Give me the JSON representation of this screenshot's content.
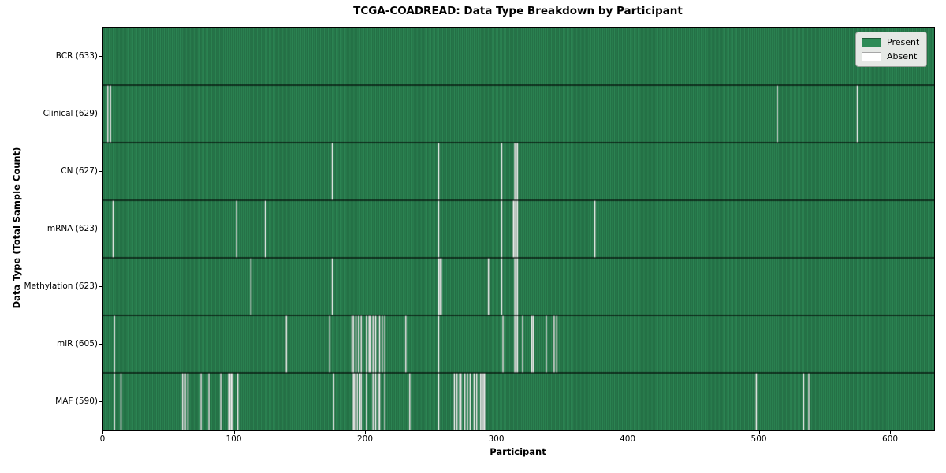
{
  "figure": {
    "title": "TCGA-COADREAD: Data Type Breakdown by Participant",
    "xlabel": "Participant",
    "ylabel": "Data Type (Total Sample Count)"
  },
  "chart_data": {
    "type": "heatmap",
    "title": "TCGA-COADREAD: Data Type Breakdown by Participant",
    "xlabel": "Participant",
    "ylabel": "Data Type (Total Sample Count)",
    "xlim": [
      0,
      633
    ],
    "n_participants": 633,
    "x_ticks": [
      0,
      100,
      200,
      300,
      400,
      500,
      600
    ],
    "grid": false,
    "legend_position": "upper right",
    "legend": [
      {
        "label": "Present",
        "color": "#2e8b57"
      },
      {
        "label": "Absent",
        "color": "#ffffff"
      }
    ],
    "colors": {
      "present": "#2e8b57",
      "absent": "#ffffff",
      "bar_edge": "rgba(0,0,0,0.5)",
      "row_divider": "rgba(0,0,0,0.85)"
    },
    "rows": [
      {
        "label": "BCR (633)",
        "data_type": "BCR",
        "total_samples": 633,
        "absent_participants": []
      },
      {
        "label": "Clinical (629)",
        "data_type": "Clinical",
        "total_samples": 629,
        "absent_participants": [
          3,
          5,
          513,
          574
        ]
      },
      {
        "label": "CN (627)",
        "data_type": "CN",
        "total_samples": 627,
        "absent_participants": [
          174,
          255,
          303,
          313,
          314,
          315
        ]
      },
      {
        "label": "mRNA (623)",
        "data_type": "mRNA",
        "total_samples": 623,
        "absent_participants": [
          7,
          101,
          123,
          255,
          303,
          312,
          313,
          314,
          315,
          374
        ]
      },
      {
        "label": "Methylation (623)",
        "data_type": "Methylation",
        "total_samples": 623,
        "absent_participants": [
          112,
          174,
          255,
          256,
          257,
          293,
          303,
          313,
          314,
          315
        ]
      },
      {
        "label": "miR (605)",
        "data_type": "miR",
        "total_samples": 605,
        "absent_participants": [
          8,
          139,
          172,
          189,
          190,
          192,
          194,
          196,
          200,
          202,
          203,
          205,
          207,
          210,
          212,
          214,
          230,
          255,
          304,
          313,
          314,
          315,
          319,
          326,
          327,
          337,
          343,
          345
        ]
      },
      {
        "label": "MAF (590)",
        "data_type": "MAF",
        "total_samples": 590,
        "absent_participants": [
          8,
          13,
          60,
          62,
          64,
          74,
          80,
          89,
          95,
          96,
          97,
          98,
          102,
          175,
          190,
          191,
          193,
          195,
          196,
          200,
          205,
          207,
          209,
          210,
          214,
          233,
          255,
          267,
          269,
          271,
          272,
          275,
          277,
          279,
          282,
          284,
          287,
          288,
          289,
          290,
          497,
          533,
          537
        ]
      }
    ]
  }
}
